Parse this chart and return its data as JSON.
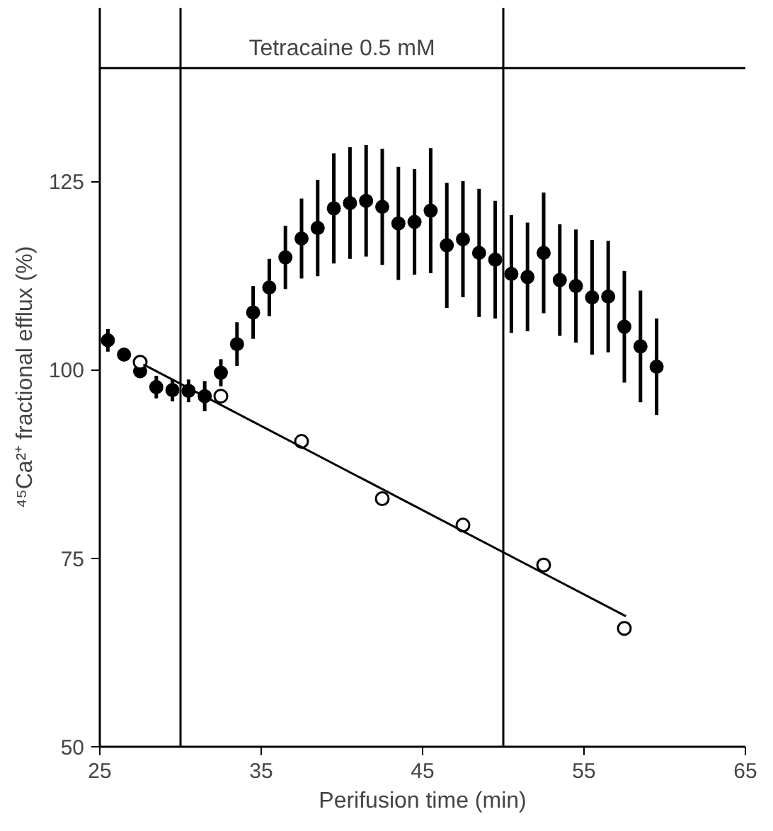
{
  "chart_data": {
    "type": "scatter",
    "xlabel": "Perifusion time (min)",
    "ylabel": "⁴⁵Ca²⁺ fractional efflux (%)",
    "xlim": [
      25,
      65
    ],
    "xticks": [
      25,
      35,
      45,
      55,
      65
    ],
    "ylim": [
      50,
      148
    ],
    "yticks": [
      50,
      75,
      100,
      125
    ],
    "grid": false,
    "series": [
      {
        "marker": "circle",
        "color": "#000000",
        "x": [
          25.5,
          26.5,
          27.5,
          28.5,
          29.5,
          30.5,
          31.5,
          32.5,
          33.5,
          34.5,
          35.5,
          36.5,
          37.5,
          38.5,
          39.5,
          40.5,
          41.5,
          42.5,
          43.5,
          44.5,
          45.5,
          46.5,
          47.5,
          48.5,
          49.5,
          50.5,
          51.5,
          52.5,
          53.5,
          54.5,
          55.5,
          56.5,
          57.5,
          58.5,
          59.5
        ],
        "values": [
          103.9,
          102.0,
          99.8,
          97.7,
          97.3,
          97.2,
          96.5,
          99.6,
          103.4,
          107.6,
          110.9,
          114.9,
          117.4,
          118.8,
          121.4,
          122.1,
          122.4,
          121.6,
          119.4,
          119.6,
          121.1,
          116.5,
          117.3,
          115.5,
          114.6,
          112.7,
          112.3,
          115.5,
          111.9,
          111.1,
          109.6,
          109.7,
          105.7,
          103.1,
          100.4
        ],
        "errors": [
          1.5,
          null,
          null,
          1.5,
          1.5,
          1.5,
          2,
          1.8,
          2.9,
          3.5,
          3.8,
          4.2,
          5.3,
          6.4,
          7.3,
          7.4,
          7.4,
          7.7,
          7.5,
          7,
          8.3,
          8.3,
          7.7,
          8.5,
          7.8,
          7.8,
          7.2,
          8,
          7.4,
          7.5,
          7.6,
          7.4,
          7.4,
          7.4,
          6.4
        ]
      },
      {
        "marker": "circle_open",
        "color": "#000000",
        "x": [
          27.5,
          32.5,
          37.5,
          42.5,
          47.5,
          52.5,
          57.5
        ],
        "values": [
          101.0,
          96.5,
          90.5,
          82.9,
          79.4,
          74.1,
          65.7
        ]
      },
      {
        "type": "line",
        "color": "#000000",
        "line_style": "solid",
        "x": [
          27.7,
          57.6
        ],
        "values": [
          100.7,
          67.3
        ]
      }
    ],
    "ref_lines": [
      {
        "axis": "x",
        "value": 30
      },
      {
        "axis": "x",
        "value": 50
      },
      {
        "axis": "y",
        "value": 140
      }
    ],
    "annotations": [
      {
        "text": "Tetracaine 0.5 mM",
        "x": 40,
        "y": 140
      }
    ]
  }
}
